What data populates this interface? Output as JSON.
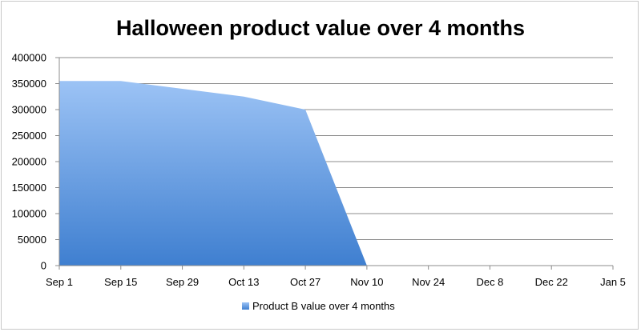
{
  "chart_data": {
    "type": "area",
    "title": "Halloween product value over 4 months",
    "xlabel": "",
    "ylabel": "",
    "categories": [
      "Sep 1",
      "Sep 15",
      "Sep 29",
      "Oct 13",
      "Oct 27",
      "Nov 10",
      "Nov 24",
      "Dec 8",
      "Dec 22",
      "Jan 5"
    ],
    "series": [
      {
        "name": "Product B value over 4 months",
        "points": [
          {
            "x": "Sep 1",
            "y": 355000
          },
          {
            "x": "Sep 15",
            "y": 355000
          },
          {
            "x": "Oct 13",
            "y": 325000
          },
          {
            "x": "Oct 27",
            "y": 300000
          },
          {
            "x": "Nov 10",
            "y": 0
          }
        ],
        "color_top": "#9cc3f5",
        "color_bottom": "#3f7fd0"
      }
    ],
    "ylim": [
      0,
      400000
    ],
    "yticks": [
      0,
      50000,
      100000,
      150000,
      200000,
      250000,
      300000,
      350000,
      400000
    ],
    "grid": true,
    "legend": "bottom"
  }
}
